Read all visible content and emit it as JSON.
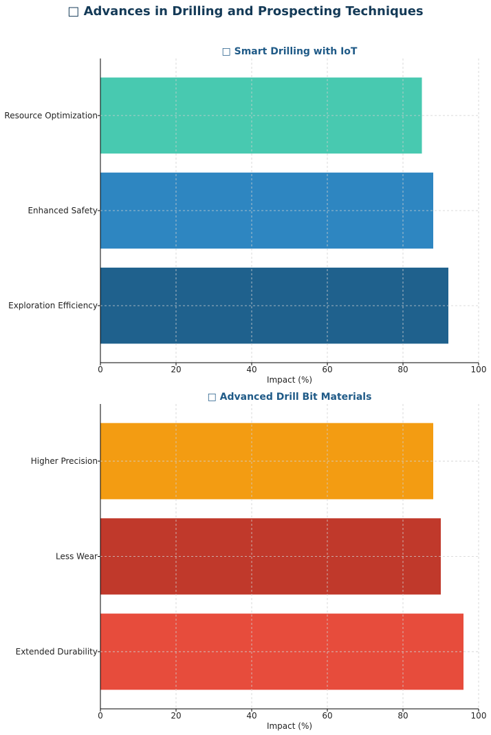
{
  "title": "□ Advances in Drilling and Prospecting Techniques",
  "chart_data": [
    {
      "type": "bar",
      "orientation": "horizontal",
      "title": "□ Smart Drilling with IoT",
      "xlabel": "Impact (%)",
      "ylabel": "",
      "xlim": [
        0,
        100
      ],
      "xticks": [
        0,
        20,
        40,
        60,
        80,
        100
      ],
      "grid": true,
      "categories": [
        "Resource Optimization",
        "Enhanced Safety",
        "Exploration Efficiency"
      ],
      "values": [
        85,
        88,
        92
      ],
      "colors": [
        "#48c9b0",
        "#2e86c1",
        "#1f618d"
      ]
    },
    {
      "type": "bar",
      "orientation": "horizontal",
      "title": "□ Advanced Drill Bit Materials",
      "xlabel": "Impact (%)",
      "ylabel": "",
      "xlim": [
        0,
        100
      ],
      "xticks": [
        0,
        20,
        40,
        60,
        80,
        100
      ],
      "grid": true,
      "categories": [
        "Higher Precision",
        "Less Wear",
        "Extended Durability"
      ],
      "values": [
        88,
        90,
        96
      ],
      "colors": [
        "#f39c12",
        "#c0392b",
        "#e74c3c"
      ]
    }
  ]
}
